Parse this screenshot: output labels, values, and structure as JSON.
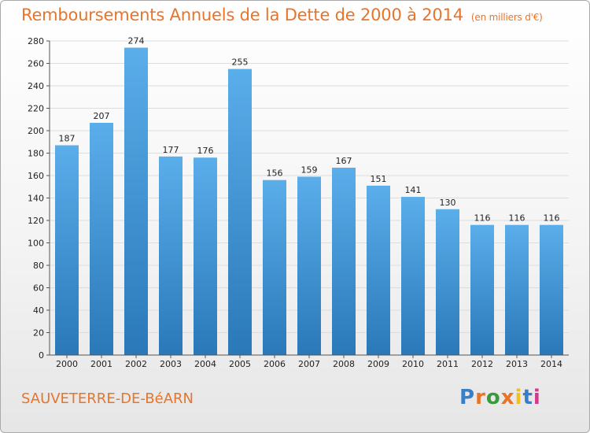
{
  "header": {
    "title": "Remboursements Annuels de la Dette de 2000 à 2014",
    "subtitle": "(en milliers d'€)"
  },
  "footer": {
    "city": "SAUVETERRE-DE-BéARN",
    "logo": "Proxiti",
    "logo_colors": [
      "#3a7ec8",
      "#e8742a",
      "#3a9a3a",
      "#e8742a",
      "#f0c020",
      "#3a7ec8",
      "#d23a8a"
    ]
  },
  "colors": {
    "accent": "#e8742a",
    "bar_top": "#5aaeea",
    "bar_bottom": "#2a78b8",
    "grid": "#dddddd"
  },
  "chart_data": {
    "type": "bar",
    "categories": [
      "2000",
      "2001",
      "2002",
      "2003",
      "2004",
      "2005",
      "2006",
      "2007",
      "2008",
      "2009",
      "2010",
      "2011",
      "2012",
      "2013",
      "2014"
    ],
    "values": [
      187,
      207,
      274,
      177,
      176,
      255,
      156,
      159,
      167,
      151,
      141,
      130,
      116,
      116,
      116
    ],
    "ylim": [
      0,
      280
    ],
    "yticks": [
      0,
      20,
      40,
      60,
      80,
      100,
      120,
      140,
      160,
      180,
      200,
      220,
      240,
      260,
      280
    ],
    "grid": true,
    "legend": "none"
  }
}
